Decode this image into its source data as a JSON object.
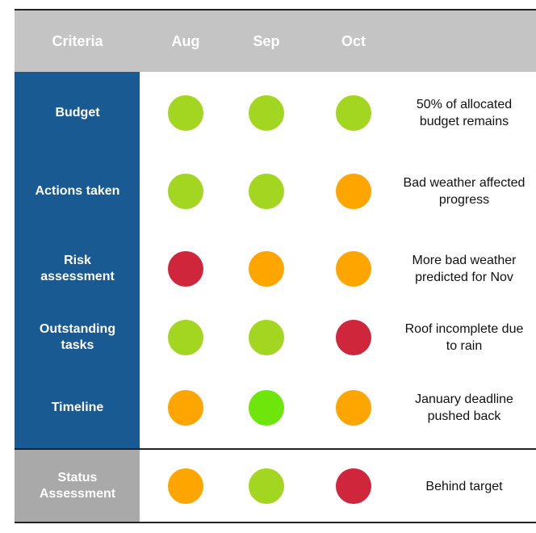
{
  "header": {
    "columns": [
      "Criteria",
      "Aug",
      "Sep",
      "Oct"
    ]
  },
  "rows": [
    {
      "label": "Budget",
      "status": [
        "#a3d620",
        "#a3d620",
        "#a3d620"
      ],
      "comment": "50% of allocated budget remains"
    },
    {
      "label": "Actions taken",
      "status": [
        "#a3d620",
        "#a3d620",
        "#ffa500"
      ],
      "comment": "Bad weather affected progress"
    },
    {
      "label": "Risk assessment",
      "status": [
        "#d0263c",
        "#ffa500",
        "#ffa500"
      ],
      "comment": "More bad weather predicted for Nov"
    },
    {
      "label": "Outstanding tasks",
      "status": [
        "#a3d620",
        "#a3d620",
        "#d0263c"
      ],
      "comment": "Roof incomplete due to rain"
    },
    {
      "label": "Timeline",
      "status": [
        "#ffa500",
        "#6ee60c",
        "#ffa500"
      ],
      "comment": "January deadline pushed back"
    }
  ],
  "summary": {
    "label": "Status Assessment",
    "status": [
      "#ffa500",
      "#a3d620",
      "#d0263c"
    ],
    "comment": "Behind target"
  }
}
